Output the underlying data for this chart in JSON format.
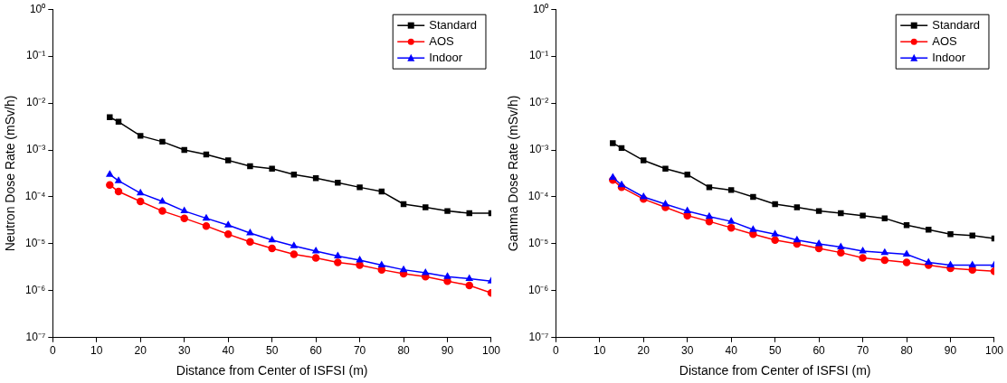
{
  "chart_data": [
    {
      "type": "line",
      "xlabel": "Distance from Center of ISFSI (m)",
      "ylabel": "Neutron Dose Rate (mSv/h)",
      "log": "y",
      "grid": false,
      "legend": "top right",
      "line_style": "solid",
      "xlim": [
        0,
        100
      ],
      "xticks": [
        0,
        10,
        20,
        30,
        40,
        50,
        60,
        70,
        80,
        90,
        100
      ],
      "ylim": [
        1e-07,
        1
      ],
      "yticks": [
        {
          "value": 1e-07,
          "label": "10⁻⁷"
        },
        {
          "value": 1e-06,
          "label": "10⁻⁶"
        },
        {
          "value": 1e-05,
          "label": "10⁻⁵"
        },
        {
          "value": 0.0001,
          "label": "10⁻⁴"
        },
        {
          "value": 0.001,
          "label": "10⁻³"
        },
        {
          "value": 0.01,
          "label": "10⁻²"
        },
        {
          "value": 0.1,
          "label": "10⁻¹"
        },
        {
          "value": 1,
          "label": "10⁰"
        }
      ],
      "x": [
        13,
        15,
        20,
        25,
        30,
        35,
        40,
        45,
        50,
        55,
        60,
        65,
        70,
        75,
        80,
        85,
        90,
        95,
        100
      ],
      "series": [
        {
          "name": "Standard",
          "color": "#000000",
          "marker": "square",
          "values": [
            0.005,
            0.004,
            0.002,
            0.0015,
            0.001,
            0.0008,
            0.0006,
            0.00045,
            0.0004,
            0.0003,
            0.00025,
            0.0002,
            0.00016,
            0.00013,
            7e-05,
            6e-05,
            5e-05,
            4.5e-05,
            4.5e-05
          ]
        },
        {
          "name": "AOS",
          "color": "#ff0000",
          "marker": "circle",
          "values": [
            0.00018,
            0.00013,
            8e-05,
            5e-05,
            3.5e-05,
            2.4e-05,
            1.6e-05,
            1.1e-05,
            8e-06,
            6e-06,
            5e-06,
            4e-06,
            3.5e-06,
            2.8e-06,
            2.3e-06,
            2e-06,
            1.6e-06,
            1.3e-06,
            9e-07
          ]
        },
        {
          "name": "Indoor",
          "color": "#0000ff",
          "marker": "triangle",
          "values": [
            0.0003,
            0.00022,
            0.00012,
            8e-05,
            5e-05,
            3.5e-05,
            2.5e-05,
            1.7e-05,
            1.2e-05,
            9e-06,
            7e-06,
            5.5e-06,
            4.5e-06,
            3.5e-06,
            2.8e-06,
            2.4e-06,
            2e-06,
            1.8e-06,
            1.6e-06
          ]
        }
      ]
    },
    {
      "type": "line",
      "xlabel": "Distance from Center of ISFSI (m)",
      "ylabel": "Gamma Dose Rate (mSv/h)",
      "log": "y",
      "grid": false,
      "legend": "top right",
      "line_style": "solid",
      "xlim": [
        0,
        100
      ],
      "xticks": [
        0,
        10,
        20,
        30,
        40,
        50,
        60,
        70,
        80,
        90,
        100
      ],
      "ylim": [
        1e-07,
        1
      ],
      "yticks": [
        {
          "value": 1e-07,
          "label": "10⁻⁷"
        },
        {
          "value": 1e-06,
          "label": "10⁻⁶"
        },
        {
          "value": 1e-05,
          "label": "10⁻⁵"
        },
        {
          "value": 0.0001,
          "label": "10⁻⁴"
        },
        {
          "value": 0.001,
          "label": "10⁻³"
        },
        {
          "value": 0.01,
          "label": "10⁻²"
        },
        {
          "value": 0.1,
          "label": "10⁻¹"
        },
        {
          "value": 1,
          "label": "10⁰"
        }
      ],
      "x": [
        13,
        15,
        20,
        25,
        30,
        35,
        40,
        45,
        50,
        55,
        60,
        65,
        70,
        75,
        80,
        85,
        90,
        95,
        100
      ],
      "series": [
        {
          "name": "Standard",
          "color": "#000000",
          "marker": "square",
          "values": [
            0.0014,
            0.0011,
            0.0006,
            0.0004,
            0.0003,
            0.00016,
            0.00014,
            0.0001,
            7e-05,
            6e-05,
            5e-05,
            4.5e-05,
            4e-05,
            3.5e-05,
            2.5e-05,
            2e-05,
            1.6e-05,
            1.5e-05,
            1.3e-05
          ]
        },
        {
          "name": "AOS",
          "color": "#ff0000",
          "marker": "circle",
          "values": [
            0.00023,
            0.00016,
            9e-05,
            6e-05,
            4e-05,
            3e-05,
            2.2e-05,
            1.6e-05,
            1.2e-05,
            1e-05,
            8e-06,
            6.5e-06,
            5e-06,
            4.5e-06,
            4e-06,
            3.5e-06,
            3e-06,
            2.8e-06,
            2.6e-06
          ]
        },
        {
          "name": "Indoor",
          "color": "#0000ff",
          "marker": "triangle",
          "values": [
            0.00026,
            0.00018,
            0.0001,
            7e-05,
            5e-05,
            3.8e-05,
            3e-05,
            2e-05,
            1.6e-05,
            1.2e-05,
            1e-05,
            8.5e-06,
            7e-06,
            6.5e-06,
            6e-06,
            4e-06,
            3.5e-06,
            3.5e-06,
            3.5e-06
          ]
        }
      ]
    }
  ]
}
